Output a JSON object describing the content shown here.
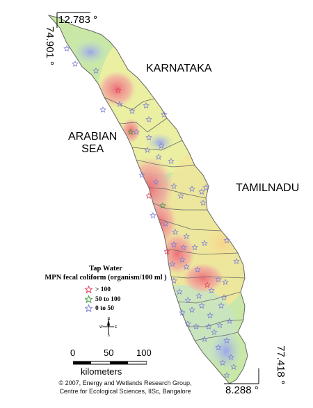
{
  "coordinates": {
    "top_lat": "12.783 °",
    "left_lon": "74.901 °",
    "right_lon": "77.418 °",
    "bottom_lat": "8.288 °"
  },
  "labels": {
    "karnataka": "KARNATAKA",
    "arabian_sea_line1": "ARABIAN",
    "arabian_sea_line2": "SEA",
    "tamilnadu": "TAMILNADU"
  },
  "legend": {
    "title": "Tap Water",
    "subtitle": "MPN fecal coliform (organism/100 ml )",
    "items": [
      {
        "label": "> 100",
        "color": "#e0405a"
      },
      {
        "label": "50 to 100",
        "color": "#3c9a3c"
      },
      {
        "label": "0 to  50",
        "color": "#7b7bd8"
      }
    ]
  },
  "compass": {
    "n": "N",
    "s": "S",
    "e": "E",
    "w": "W"
  },
  "scale": {
    "ticks": [
      "0",
      "50",
      "100"
    ],
    "unit": "kilometers"
  },
  "credit": {
    "line1": "© 2007, Energy and Wetlands Research Group,",
    "line2": "Centre for Ecological Sciences, IISc, Bangalore"
  },
  "colors": {
    "high": "#f0888a",
    "mid": "#f4e79a",
    "low": "#b7e3a2",
    "veryLow": "#b4b8ee",
    "boundary": "#666666"
  }
}
